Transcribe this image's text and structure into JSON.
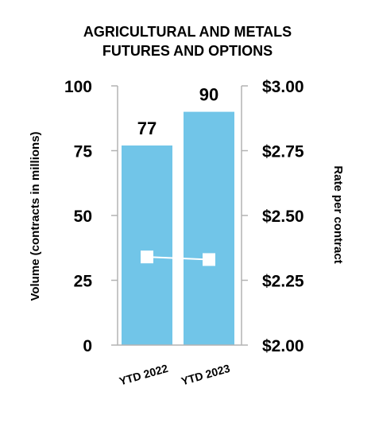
{
  "chart_data": {
    "type": "bar",
    "title_lines": [
      "AGRICULTURAL AND METALS",
      "FUTURES AND OPTIONS"
    ],
    "categories": [
      "YTD 2022",
      "YTD 2023"
    ],
    "series": [
      {
        "axis": "left",
        "type": "bar",
        "values": [
          77,
          90
        ],
        "color": "#71C5E8"
      },
      {
        "axis": "right",
        "type": "line",
        "values": [
          2.34,
          2.33
        ],
        "color": "#ffffff"
      }
    ],
    "data_labels": [
      "77",
      "90"
    ],
    "ylabel": "Volume (contracts in millions)",
    "y2label": "Rate per contract",
    "ylim": [
      0,
      100
    ],
    "y2lim": [
      2.0,
      3.0
    ],
    "yticks": [
      "0",
      "25",
      "50",
      "75",
      "100"
    ],
    "y2ticks": [
      "$2.00",
      "$2.25",
      "$2.50",
      "$2.75",
      "$3.00"
    ],
    "grid": false
  }
}
